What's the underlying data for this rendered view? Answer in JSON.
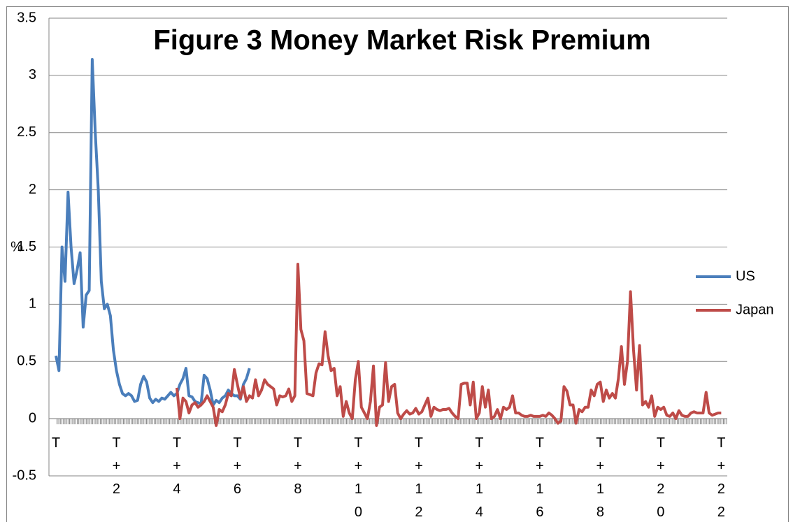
{
  "chart_data": {
    "type": "line",
    "title": "Figure 3 Money Market Risk Premium",
    "y_label": "%",
    "xlim": [
      0,
      22.2
    ],
    "ylim": [
      -0.5,
      3.5
    ],
    "xticks": [
      {
        "value": 0,
        "label": "T"
      },
      {
        "value": 2,
        "label": "T+2"
      },
      {
        "value": 4,
        "label": "T+4"
      },
      {
        "value": 6,
        "label": "T+6"
      },
      {
        "value": 8,
        "label": "T+8"
      },
      {
        "value": 10,
        "label": "T+10"
      },
      {
        "value": 12,
        "label": "T+12"
      },
      {
        "value": 14,
        "label": "T+14"
      },
      {
        "value": 16,
        "label": "T+16"
      },
      {
        "value": 18,
        "label": "T+18"
      },
      {
        "value": 20,
        "label": "T+20"
      },
      {
        "value": 22,
        "label": "T+22"
      }
    ],
    "yticks": [
      -0.5,
      0,
      0.5,
      1,
      1.5,
      2,
      2.5,
      3,
      3.5
    ],
    "grid": true,
    "legend": "right",
    "series": [
      {
        "name": "US",
        "color": "#4a7ebb",
        "x": [
          0,
          0.1,
          0.2,
          0.3,
          0.4,
          0.5,
          0.6,
          0.7,
          0.8,
          0.9,
          1,
          1.1,
          1.2,
          1.3,
          1.4,
          1.5,
          1.6,
          1.7,
          1.8,
          1.9,
          2,
          2.1,
          2.2,
          2.3,
          2.4,
          2.5,
          2.6,
          2.7,
          2.8,
          2.9,
          3,
          3.1,
          3.2,
          3.3,
          3.4,
          3.5,
          3.6,
          3.7,
          3.8,
          3.9,
          4,
          4.1,
          4.2,
          4.3,
          4.4,
          4.5,
          4.6,
          4.7,
          4.8,
          4.9,
          5,
          5.1,
          5.2,
          5.3,
          5.4,
          5.5,
          5.6,
          5.7,
          5.8,
          5.9,
          6,
          6.1,
          6.2,
          6.3,
          6.4
        ],
        "values": [
          0.55,
          0.42,
          1.5,
          1.2,
          1.98,
          1.5,
          1.18,
          1.3,
          1.45,
          0.8,
          1.08,
          1.12,
          3.14,
          2.5,
          2.0,
          1.2,
          0.96,
          1.0,
          0.9,
          0.6,
          0.42,
          0.3,
          0.22,
          0.2,
          0.22,
          0.2,
          0.15,
          0.16,
          0.3,
          0.37,
          0.32,
          0.18,
          0.14,
          0.17,
          0.15,
          0.18,
          0.17,
          0.2,
          0.23,
          0.2,
          0.22,
          0.3,
          0.35,
          0.44,
          0.2,
          0.19,
          0.15,
          0.14,
          0.13,
          0.38,
          0.35,
          0.25,
          0.12,
          0.16,
          0.14,
          0.18,
          0.2,
          0.25,
          0.22,
          0.2,
          0.2,
          0.17,
          0.3,
          0.35,
          0.44
        ]
      },
      {
        "name": "Japan",
        "color": "#be4b48",
        "x": [
          4,
          4.1,
          4.2,
          4.3,
          4.4,
          4.5,
          4.6,
          4.7,
          4.8,
          4.9,
          5,
          5.1,
          5.2,
          5.3,
          5.4,
          5.5,
          5.6,
          5.7,
          5.8,
          5.9,
          6,
          6.1,
          6.2,
          6.3,
          6.4,
          6.5,
          6.6,
          6.7,
          6.8,
          6.9,
          7,
          7.1,
          7.2,
          7.3,
          7.4,
          7.5,
          7.6,
          7.7,
          7.8,
          7.9,
          8,
          8.1,
          8.2,
          8.3,
          8.4,
          8.5,
          8.6,
          8.7,
          8.8,
          8.9,
          9,
          9.1,
          9.2,
          9.3,
          9.4,
          9.5,
          9.6,
          9.7,
          9.8,
          9.9,
          10,
          10.1,
          10.2,
          10.3,
          10.4,
          10.5,
          10.6,
          10.7,
          10.8,
          10.9,
          11,
          11.1,
          11.2,
          11.3,
          11.4,
          11.5,
          11.6,
          11.7,
          11.8,
          11.9,
          12,
          12.1,
          12.2,
          12.3,
          12.4,
          12.5,
          12.6,
          12.7,
          12.8,
          12.9,
          13,
          13.1,
          13.2,
          13.3,
          13.4,
          13.5,
          13.6,
          13.7,
          13.8,
          13.9,
          14,
          14.1,
          14.2,
          14.3,
          14.4,
          14.5,
          14.6,
          14.7,
          14.8,
          14.9,
          15,
          15.1,
          15.2,
          15.3,
          15.4,
          15.5,
          15.6,
          15.7,
          15.8,
          15.9,
          16,
          16.1,
          16.2,
          16.3,
          16.4,
          16.5,
          16.6,
          16.7,
          16.8,
          16.9,
          17,
          17.1,
          17.2,
          17.3,
          17.4,
          17.5,
          17.6,
          17.7,
          17.8,
          17.9,
          18,
          18.1,
          18.2,
          18.3,
          18.4,
          18.5,
          18.6,
          18.7,
          18.8,
          18.9,
          19,
          19.1,
          19.2,
          19.3,
          19.4,
          19.5,
          19.6,
          19.7,
          19.8,
          19.9,
          20,
          20.1,
          20.2,
          20.3,
          20.4,
          20.5,
          20.6,
          20.7,
          20.8,
          20.9,
          21,
          21.1,
          21.2,
          21.3,
          21.4,
          21.5,
          21.6,
          21.7,
          21.8,
          21.9,
          22
        ],
        "values": [
          0.27,
          0.0,
          0.18,
          0.15,
          0.05,
          0.12,
          0.14,
          0.1,
          0.12,
          0.15,
          0.2,
          0.15,
          0.1,
          -0.06,
          0.08,
          0.06,
          0.12,
          0.22,
          0.2,
          0.43,
          0.3,
          0.18,
          0.28,
          0.15,
          0.2,
          0.18,
          0.34,
          0.2,
          0.25,
          0.34,
          0.3,
          0.28,
          0.26,
          0.12,
          0.2,
          0.19,
          0.2,
          0.26,
          0.15,
          0.2,
          1.35,
          0.78,
          0.68,
          0.22,
          0.21,
          0.2,
          0.4,
          0.48,
          0.47,
          0.76,
          0.55,
          0.42,
          0.44,
          0.2,
          0.28,
          0.02,
          0.15,
          0.05,
          0.0,
          0.34,
          0.5,
          0.1,
          0.05,
          0.0,
          0.15,
          0.46,
          -0.06,
          0.1,
          0.12,
          0.49,
          0.15,
          0.28,
          0.3,
          0.05,
          0.0,
          0.04,
          0.07,
          0.04,
          0.05,
          0.09,
          0.04,
          0.06,
          0.12,
          0.18,
          0.02,
          0.1,
          0.08,
          0.07,
          0.08,
          0.08,
          0.09,
          0.05,
          0.02,
          0.0,
          0.3,
          0.31,
          0.31,
          0.12,
          0.32,
          0.0,
          0.05,
          0.28,
          0.1,
          0.25,
          0.0,
          0.02,
          0.08,
          0.0,
          0.1,
          0.08,
          0.1,
          0.2,
          0.05,
          0.05,
          0.03,
          0.02,
          0.02,
          0.03,
          0.02,
          0.02,
          0.02,
          0.03,
          0.02,
          0.05,
          0.03,
          0.0,
          -0.04,
          -0.02,
          0.28,
          0.24,
          0.12,
          0.12,
          -0.04,
          0.08,
          0.06,
          0.1,
          0.1,
          0.25,
          0.2,
          0.3,
          0.32,
          0.15,
          0.25,
          0.18,
          0.22,
          0.18,
          0.35,
          0.63,
          0.3,
          0.5,
          1.11,
          0.6,
          0.25,
          0.64,
          0.12,
          0.15,
          0.1,
          0.2,
          0.02,
          0.1,
          0.08,
          0.1,
          0.03,
          0.02,
          0.05,
          0.0,
          0.07,
          0.03,
          0.02,
          0.02,
          0.05,
          0.06,
          0.05,
          0.05,
          0.05,
          0.23,
          0.05,
          0.03,
          0.04,
          0.05,
          0.05
        ]
      }
    ]
  }
}
